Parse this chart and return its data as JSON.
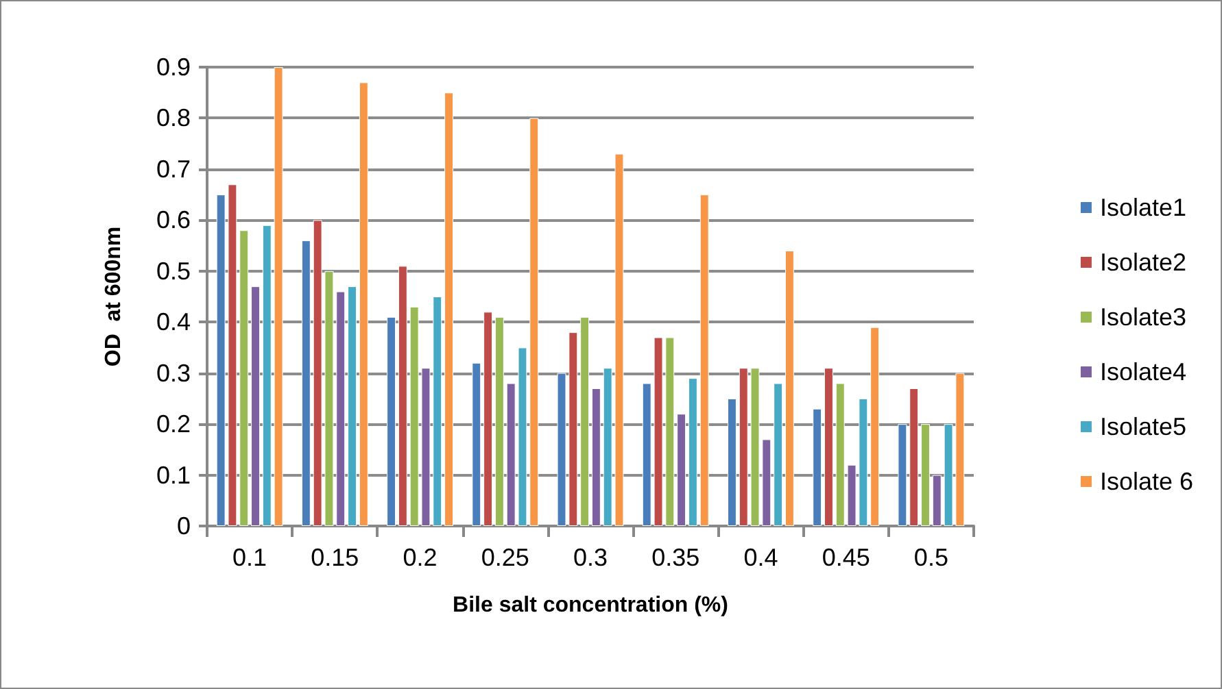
{
  "chart_data": {
    "type": "bar",
    "xlabel": "Bile salt concentration (%)",
    "ylabel": "OD  at 600nm",
    "categories": [
      "0.1",
      "0.15",
      "0.2",
      "0.25",
      "0.3",
      "0.35",
      "0.4",
      "0.45",
      "0.5"
    ],
    "series": [
      {
        "name": "Isolate1",
        "color": "#4a7ebb",
        "values": [
          0.65,
          0.56,
          0.41,
          0.32,
          0.3,
          0.28,
          0.25,
          0.23,
          0.2
        ]
      },
      {
        "name": "Isolate2",
        "color": "#be4b48",
        "values": [
          0.67,
          0.6,
          0.51,
          0.42,
          0.38,
          0.37,
          0.31,
          0.31,
          0.27
        ]
      },
      {
        "name": "Isolate3",
        "color": "#98b954",
        "values": [
          0.58,
          0.5,
          0.43,
          0.41,
          0.41,
          0.37,
          0.31,
          0.28,
          0.2
        ]
      },
      {
        "name": "Isolate4",
        "color": "#7d60a0",
        "values": [
          0.47,
          0.46,
          0.31,
          0.28,
          0.27,
          0.22,
          0.17,
          0.12,
          0.1
        ]
      },
      {
        "name": "Isolate5",
        "color": "#46aac5",
        "values": [
          0.59,
          0.47,
          0.45,
          0.35,
          0.31,
          0.29,
          0.28,
          0.25,
          0.2
        ]
      },
      {
        "name": "Isolate 6",
        "color": "#f79646",
        "values": [
          0.9,
          0.87,
          0.85,
          0.8,
          0.73,
          0.65,
          0.54,
          0.39,
          0.3
        ]
      }
    ],
    "ylim": [
      0,
      0.9
    ],
    "yticks": [
      0,
      0.1,
      0.2,
      0.3,
      0.4,
      0.5,
      0.6,
      0.7,
      0.8,
      0.9
    ],
    "grid": "y",
    "legend": "right"
  }
}
